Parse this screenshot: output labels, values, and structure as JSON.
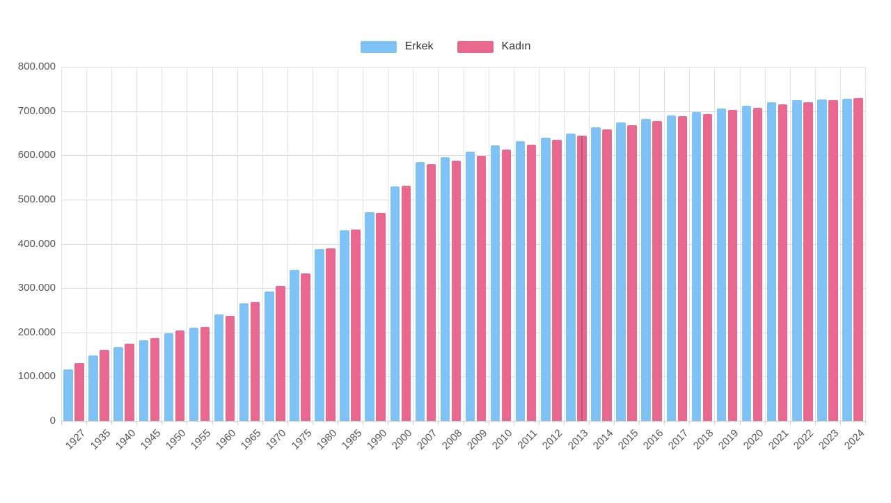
{
  "chart_data": {
    "type": "bar",
    "title": "",
    "xlabel": "",
    "ylabel": "",
    "grid": true,
    "legend_position": "top-center",
    "ylim": [
      0,
      800000
    ],
    "y_ticks": [
      "0",
      "100.000",
      "200.000",
      "300.000",
      "400.000",
      "500.000",
      "600.000",
      "700.000",
      "800.000"
    ],
    "categories": [
      "1927",
      "1935",
      "1940",
      "1945",
      "1950",
      "1955",
      "1960",
      "1965",
      "1970",
      "1975",
      "1980",
      "1985",
      "1990",
      "2000",
      "2007",
      "2008",
      "2009",
      "2010",
      "2011",
      "2012",
      "2013",
      "2014",
      "2015",
      "2016",
      "2017",
      "2018",
      "2019",
      "2020",
      "2021",
      "2022",
      "2023",
      "2024"
    ],
    "series": [
      {
        "name": "Erkek",
        "color": "#7ec2f6",
        "values": [
          116000,
          148500,
          166500,
          182500,
          198500,
          211000,
          241000,
          266000,
          292500,
          341500,
          388500,
          430000,
          471500,
          530000,
          584500,
          595000,
          608000,
          623000,
          632500,
          639500,
          649500,
          664000,
          673500,
          682500,
          690500,
          697500,
          706000,
          712000,
          720500,
          724500,
          725500,
          728000
        ]
      },
      {
        "name": "Kadın",
        "color": "#e8688f",
        "values": [
          131000,
          160500,
          175000,
          187500,
          205000,
          211500,
          237500,
          268500,
          305000,
          333500,
          390000,
          433000,
          470500,
          531500,
          580000,
          588000,
          598500,
          613000,
          624000,
          635000,
          644000,
          659000,
          668000,
          677000,
          688000,
          693500,
          702000,
          708000,
          715000,
          720500,
          724500,
          730000
        ]
      }
    ],
    "hover_line": {
      "category": "2013",
      "series": "Kadın"
    },
    "style_colors": {
      "grid": "#e2e2e2",
      "axis_text": "#555555",
      "legend_text": "#333333",
      "background": "#ffffff"
    }
  }
}
